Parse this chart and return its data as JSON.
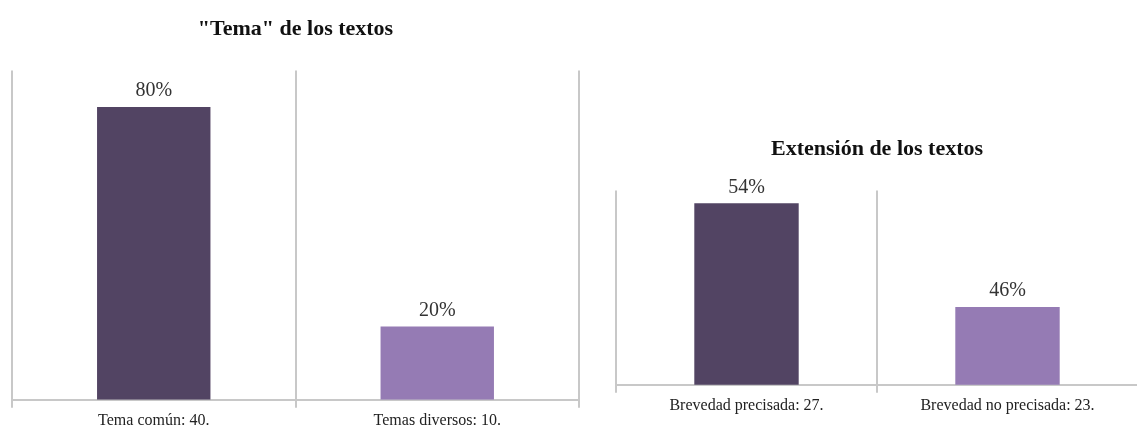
{
  "chart_data": [
    {
      "type": "bar",
      "title": "\"Tema\" de los textos",
      "categories": [
        "Tema común: 40.",
        "Temas diversos: 10."
      ],
      "series": [
        {
          "values": [
            80,
            20
          ],
          "colors": [
            "#524463",
            "#957bb4"
          ],
          "value_labels": [
            "80%",
            "20%"
          ]
        }
      ],
      "ylim": [
        0,
        90
      ],
      "grid": "x",
      "legend": false
    },
    {
      "type": "bar",
      "title": "Extensión de los textos",
      "categories": [
        "Brevedad precisada: 27.",
        "Brevedad no precisada: 23."
      ],
      "series": [
        {
          "values": [
            54,
            46
          ],
          "colors": [
            "#524463",
            "#957bb4"
          ],
          "value_labels": [
            "54%",
            "46%"
          ]
        }
      ],
      "ylim": [
        40,
        55
      ],
      "grid": "x",
      "legend": false
    }
  ]
}
